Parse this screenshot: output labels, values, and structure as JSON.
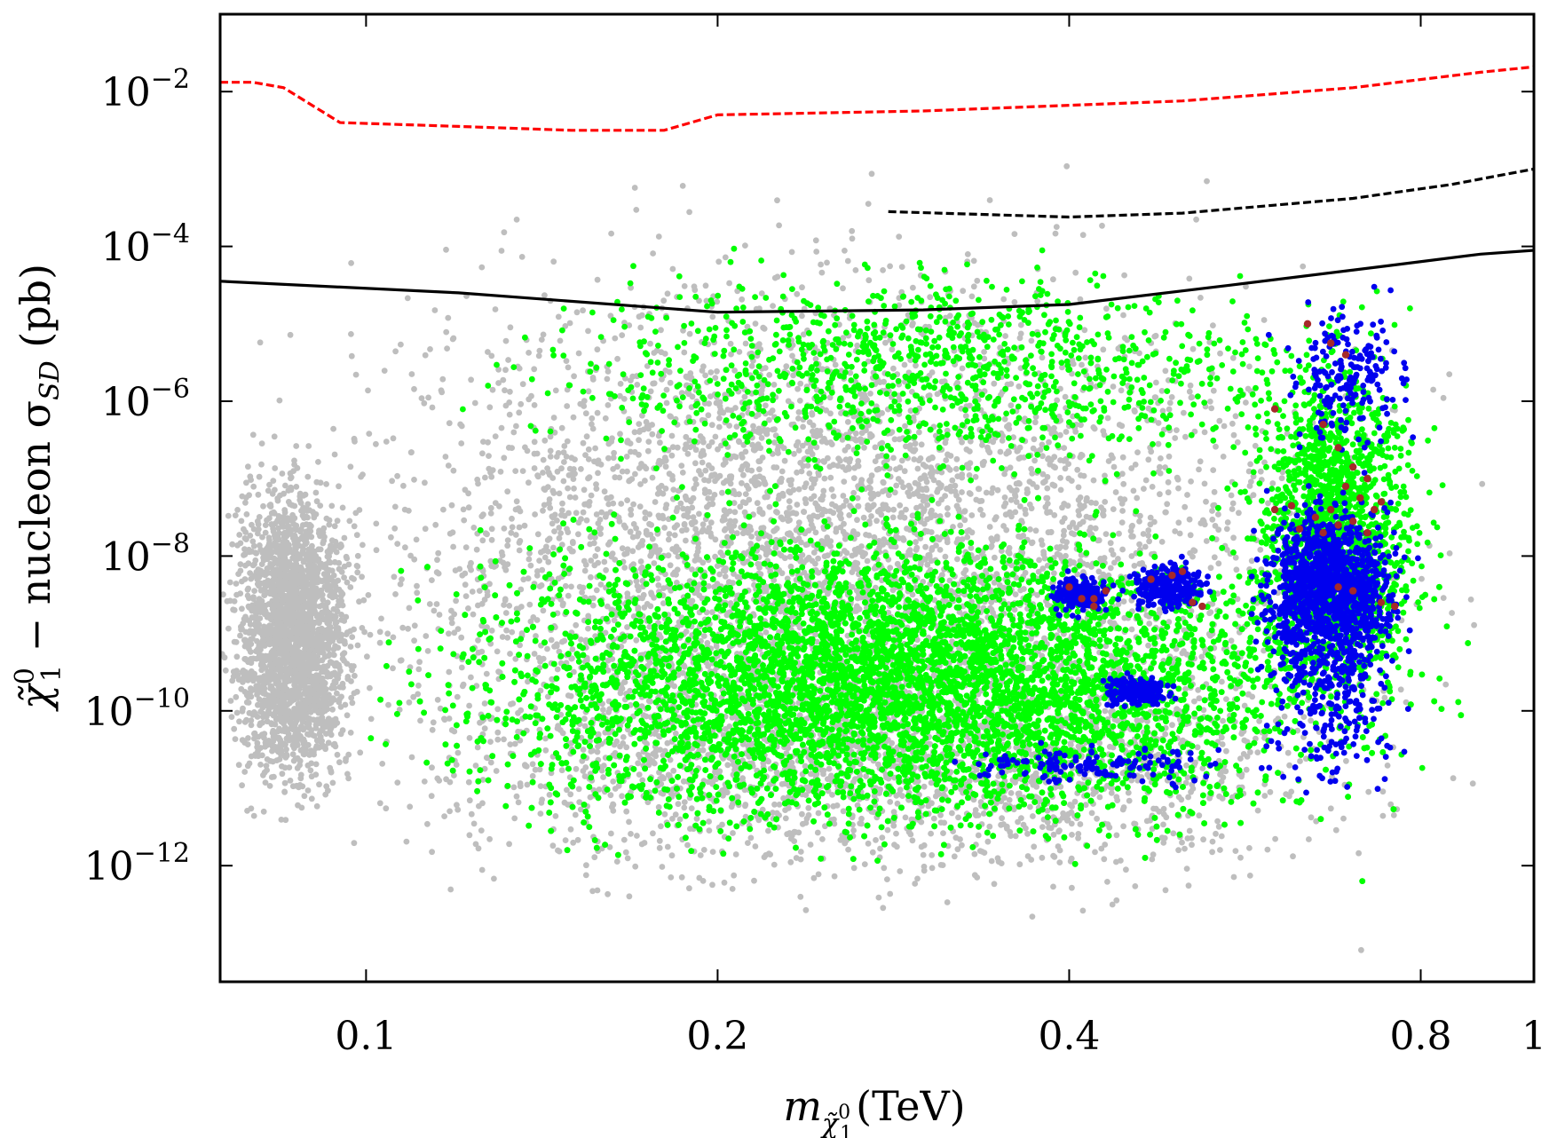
{
  "chart_data": {
    "type": "scatter",
    "title": "",
    "xlabel": {
      "main": "m",
      "sub_base": "χ̃",
      "sub_sup": "0",
      "sub_sub": "1",
      "unit": "(TeV)"
    },
    "ylabel": {
      "chi": "χ̃",
      "sup": "0",
      "sub": "1",
      "mid": " − nucleon σ",
      "sigma_sub": "SD",
      "unit": " (pb)"
    },
    "x_scale": "log",
    "y_scale": "log",
    "xlim": [
      0.075,
      1.0
    ],
    "ylim_log10": [
      -13.5,
      -1.0
    ],
    "x_ticks": [
      {
        "value": 0.1,
        "label": "0.1"
      },
      {
        "value": 0.2,
        "label": "0.2"
      },
      {
        "value": 0.4,
        "label": "0.4"
      },
      {
        "value": 0.8,
        "label": "0.8"
      },
      {
        "value": 1.0,
        "label": "1"
      }
    ],
    "y_ticks": [
      {
        "exp": -2,
        "base": "10",
        "sup": "−2"
      },
      {
        "exp": -4,
        "base": "10",
        "sup": "−4"
      },
      {
        "exp": -6,
        "base": "10",
        "sup": "−6"
      },
      {
        "exp": -8,
        "base": "10",
        "sup": "−8"
      },
      {
        "exp": -10,
        "base": "10",
        "sup": "−10"
      },
      {
        "exp": -12,
        "base": "10",
        "sup": "−12"
      }
    ],
    "grid": false,
    "legend": "none",
    "series": [
      {
        "color": "#bebebe",
        "point_count": 9000,
        "regions": [
          {
            "x": [
              0.075,
              0.87
            ],
            "log10y": [
              -12.7,
              -3.3
            ],
            "weight": 0.55
          },
          {
            "x": [
              0.075,
              0.1
            ],
            "log10y": [
              -11.5,
              -6.5
            ],
            "weight": 0.25
          },
          {
            "x": [
              0.1,
              0.87
            ],
            "log10y": [
              -12.6,
              -8.5
            ],
            "weight": 0.2
          }
        ]
      },
      {
        "color": "#00ff00",
        "point_count": 14000,
        "regions": [
          {
            "x": [
              0.1,
              0.85
            ],
            "log10y": [
              -12.0,
              -7.2
            ],
            "weight": 0.8
          },
          {
            "x": [
              0.12,
              0.8
            ],
            "log10y": [
              -7.2,
              -4.0
            ],
            "weight": 0.08
          },
          {
            "x": [
              0.55,
              0.83
            ],
            "log10y": [
              -10.5,
              -4.8
            ],
            "weight": 0.12
          }
        ]
      },
      {
        "color": "#0000ee",
        "point_count": 2400,
        "regions": [
          {
            "x": [
              0.57,
              0.78
            ],
            "log10y": [
              -9.5,
              -7.2
            ],
            "weight": 0.35
          },
          {
            "x": [
              0.57,
              0.8
            ],
            "log10y": [
              -11.4,
              -6.7
            ],
            "weight": 0.25
          },
          {
            "x": [
              0.38,
              0.44
            ],
            "log10y": [
              -8.8,
              -8.2
            ],
            "weight": 0.08
          },
          {
            "x": [
              0.44,
              0.54
            ],
            "log10y": [
              -8.8,
              -8.0
            ],
            "weight": 0.1
          },
          {
            "x": [
              0.42,
              0.5
            ],
            "log10y": [
              -10.0,
              -9.5
            ],
            "weight": 0.08
          },
          {
            "x": [
              0.6,
              0.8
            ],
            "log10y": [
              -6.8,
              -4.6
            ],
            "weight": 0.08
          },
          {
            "x": [
              0.3,
              0.6
            ],
            "log10y": [
              -11.0,
              -10.4
            ],
            "weight": 0.06
          }
        ]
      },
      {
        "color": "#a52a2a",
        "points": [
          [
            0.64,
            -5.0
          ],
          [
            0.67,
            -5.25
          ],
          [
            0.69,
            -5.4
          ],
          [
            0.66,
            -6.3
          ],
          [
            0.68,
            -6.6
          ],
          [
            0.7,
            -6.85
          ],
          [
            0.72,
            -7.0
          ],
          [
            0.69,
            -7.1
          ],
          [
            0.71,
            -7.25
          ],
          [
            0.67,
            -7.4
          ],
          [
            0.73,
            -7.4
          ],
          [
            0.65,
            -7.5
          ],
          [
            0.7,
            -7.55
          ],
          [
            0.74,
            -7.3
          ],
          [
            0.63,
            -7.65
          ],
          [
            0.66,
            -7.7
          ],
          [
            0.68,
            -7.6
          ],
          [
            0.72,
            -7.7
          ],
          [
            0.62,
            -7.35
          ],
          [
            0.6,
            -7.4
          ],
          [
            0.6,
            -6.1
          ],
          [
            0.68,
            -8.4
          ],
          [
            0.7,
            -8.45
          ],
          [
            0.76,
            -8.65
          ],
          [
            0.74,
            -8.6
          ],
          [
            0.49,
            -8.25
          ],
          [
            0.5,
            -8.2
          ],
          [
            0.51,
            -8.6
          ],
          [
            0.52,
            -8.65
          ],
          [
            0.47,
            -8.3
          ],
          [
            0.4,
            -8.4
          ],
          [
            0.41,
            -8.55
          ],
          [
            0.42,
            -8.55
          ],
          [
            0.43,
            -8.45
          ],
          [
            0.42,
            -8.65
          ]
        ]
      }
    ],
    "lines": [
      {
        "color": "#ff0000",
        "style": "dashed",
        "points": [
          [
            0.075,
            -1.88
          ],
          [
            0.08,
            -1.88
          ],
          [
            0.085,
            -1.95
          ],
          [
            0.095,
            -2.4
          ],
          [
            0.12,
            -2.45
          ],
          [
            0.15,
            -2.5
          ],
          [
            0.18,
            -2.5
          ],
          [
            0.2,
            -2.3
          ],
          [
            0.3,
            -2.25
          ],
          [
            0.5,
            -2.12
          ],
          [
            0.7,
            -1.95
          ],
          [
            0.9,
            -1.75
          ],
          [
            1.0,
            -1.68
          ]
        ]
      },
      {
        "color": "#000000",
        "style": "dashed",
        "points": [
          [
            0.28,
            -3.55
          ],
          [
            0.4,
            -3.62
          ],
          [
            0.5,
            -3.57
          ],
          [
            0.7,
            -3.38
          ],
          [
            0.85,
            -3.2
          ],
          [
            1.0,
            -3.0
          ]
        ]
      },
      {
        "color": "#000000",
        "style": "solid",
        "points": [
          [
            0.075,
            -4.45
          ],
          [
            0.12,
            -4.6
          ],
          [
            0.2,
            -4.85
          ],
          [
            0.3,
            -4.82
          ],
          [
            0.4,
            -4.75
          ],
          [
            0.55,
            -4.5
          ],
          [
            0.75,
            -4.25
          ],
          [
            0.9,
            -4.1
          ],
          [
            1.0,
            -4.05
          ]
        ]
      }
    ]
  }
}
